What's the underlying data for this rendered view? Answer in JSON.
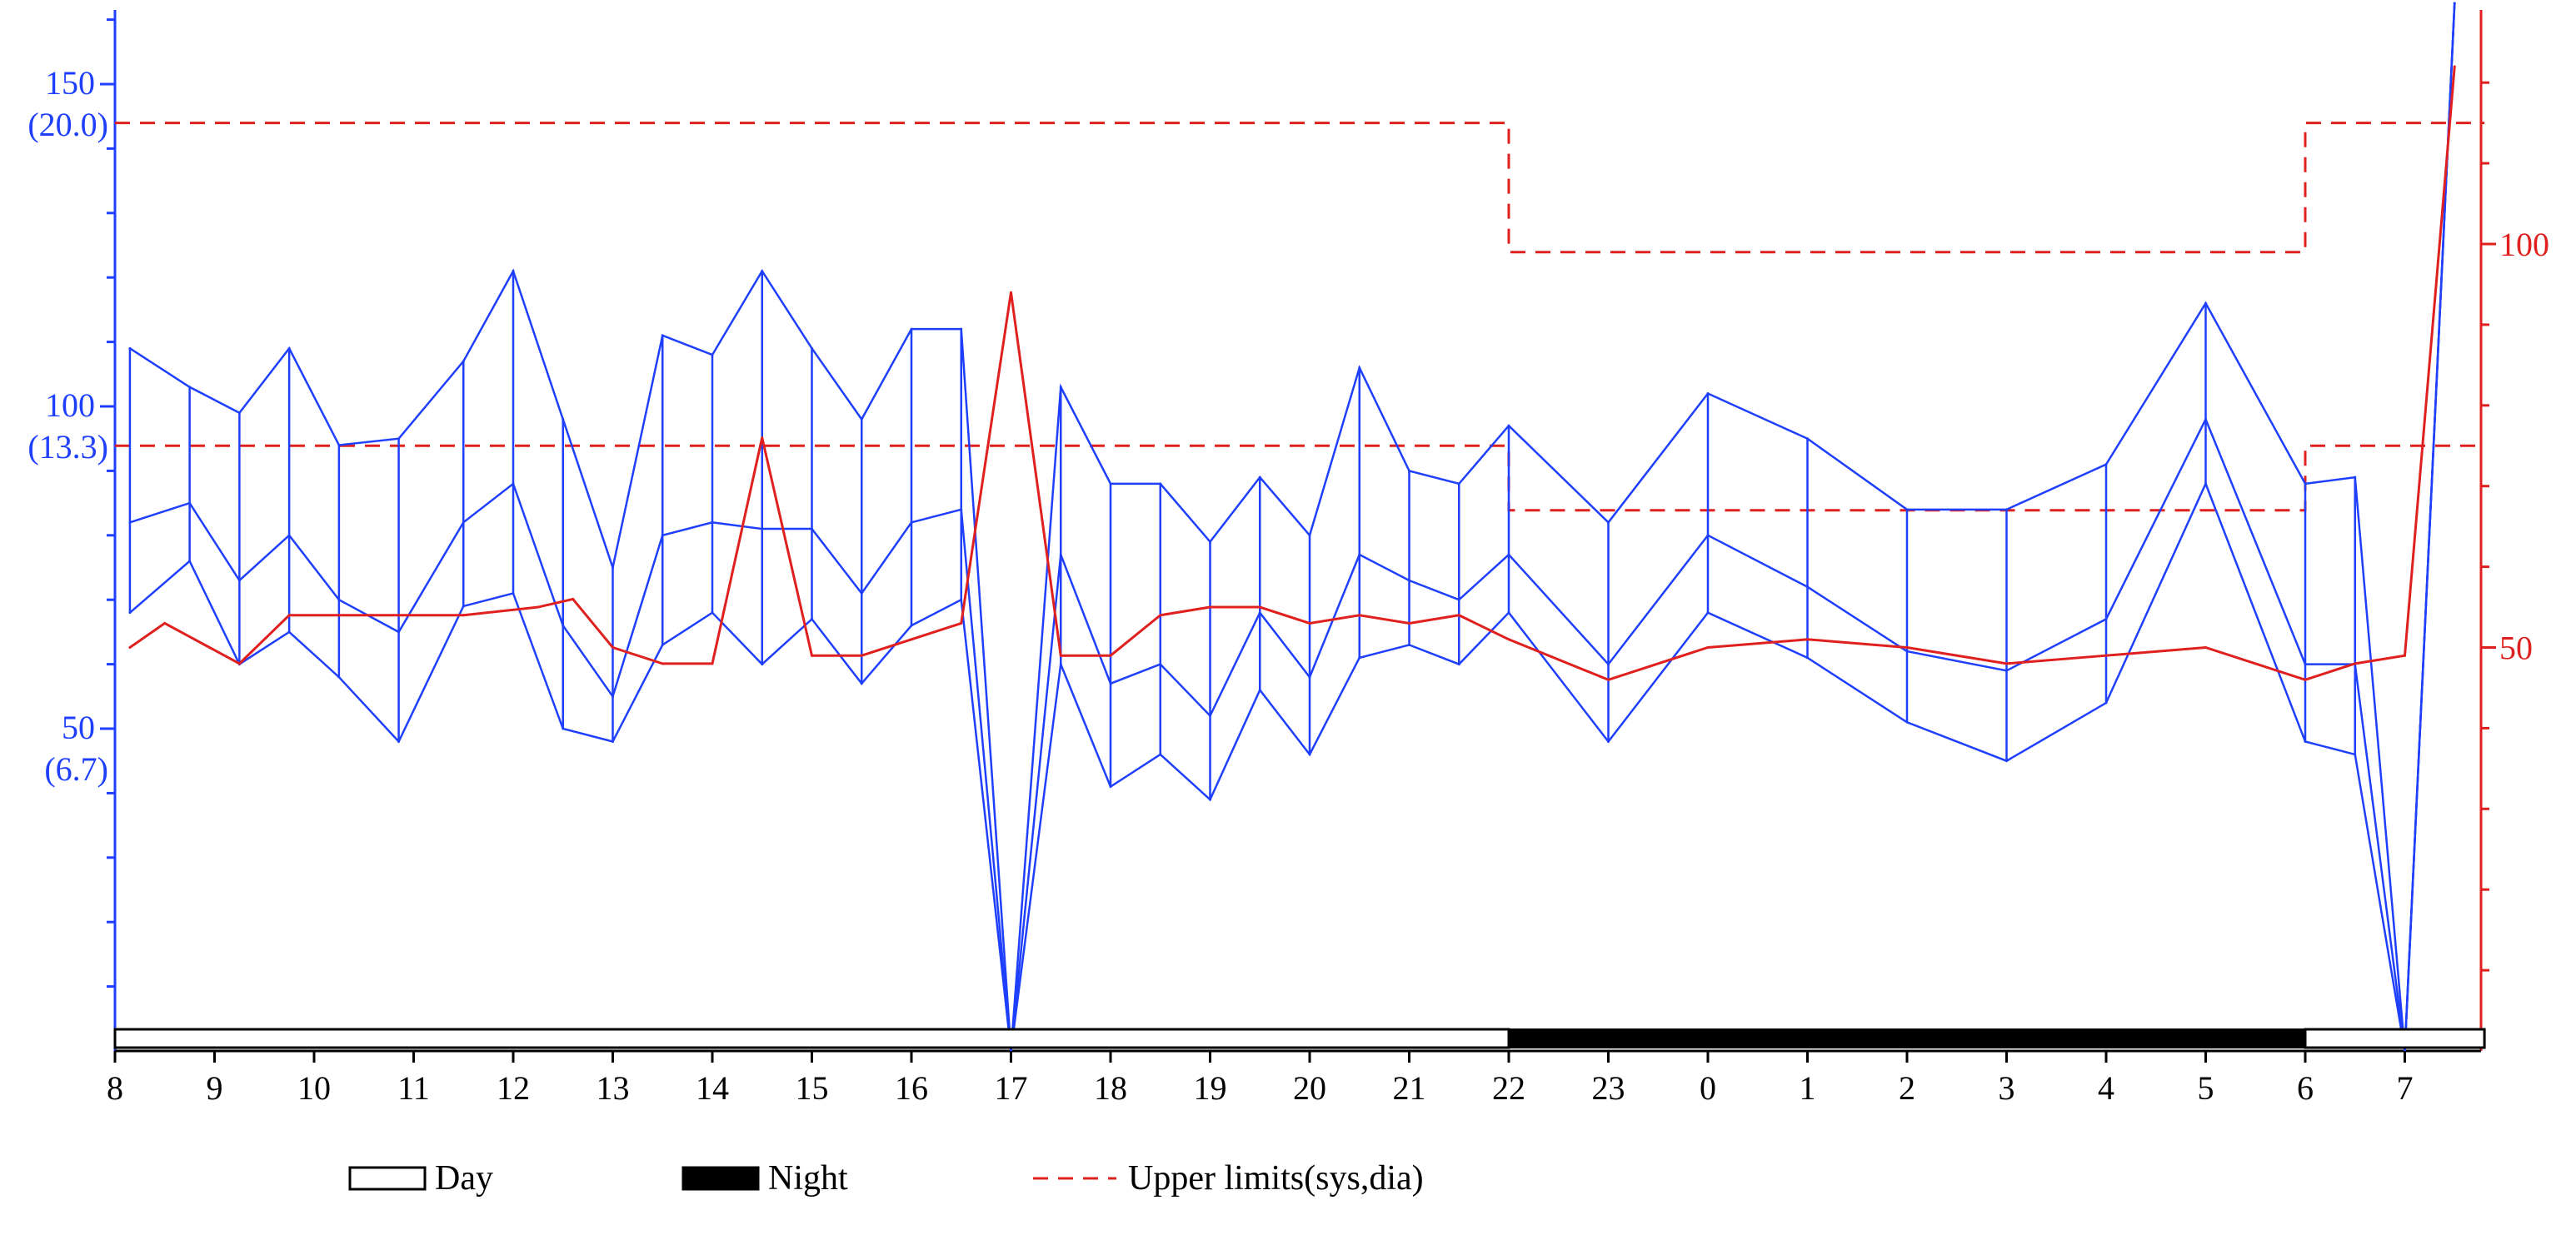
{
  "chart_data": {
    "type": "line",
    "x_tick_labels": [
      "8",
      "9",
      "10",
      "11",
      "12",
      "13",
      "14",
      "15",
      "16",
      "17",
      "18",
      "19",
      "20",
      "21",
      "22",
      "23",
      "0",
      "1",
      "2",
      "3",
      "4",
      "5",
      "6",
      "7"
    ],
    "left_axis": {
      "range": [
        0,
        165
      ],
      "ticks": [
        {
          "value": 150,
          "label": "150",
          "sublabel": "(20.0)"
        },
        {
          "value": 100,
          "label": "100",
          "sublabel": "(13.3)"
        },
        {
          "value": 50,
          "label": "50",
          "sublabel": "(6.7)"
        }
      ],
      "minor_ticks": [
        10,
        20,
        30,
        40,
        60,
        70,
        80,
        90,
        110,
        120,
        130,
        140,
        160
      ],
      "color": "#1f3fff"
    },
    "right_axis": {
      "range": [
        0,
        125
      ],
      "ticks": [
        {
          "value": 100,
          "label": "100"
        },
        {
          "value": 50,
          "label": "50"
        }
      ],
      "minor_ticks": [
        10,
        20,
        30,
        40,
        60,
        70,
        80,
        90,
        110,
        120
      ],
      "color": "#e0201f"
    },
    "series": [
      {
        "role": "systolic",
        "axis": "left",
        "color": "#1f3fff",
        "points": [
          [
            0.15,
            109
          ],
          [
            0.75,
            103
          ],
          [
            1.25,
            99
          ],
          [
            1.75,
            109
          ],
          [
            2.25,
            94
          ],
          [
            2.85,
            95
          ],
          [
            3.5,
            107
          ],
          [
            4.0,
            121
          ],
          [
            4.5,
            98
          ],
          [
            5.0,
            75
          ],
          [
            5.5,
            111
          ],
          [
            6.0,
            108
          ],
          [
            6.5,
            121
          ],
          [
            7.0,
            109
          ],
          [
            7.5,
            98
          ],
          [
            8.0,
            112
          ],
          [
            8.5,
            112
          ],
          [
            9.0,
            0
          ],
          [
            9.5,
            103
          ],
          [
            10.0,
            88
          ],
          [
            10.5,
            88
          ],
          [
            11.0,
            79
          ],
          [
            11.5,
            89
          ],
          [
            12.0,
            80
          ],
          [
            12.5,
            106
          ],
          [
            13.0,
            90
          ],
          [
            13.5,
            88
          ],
          [
            14.0,
            97
          ],
          [
            15.0,
            82
          ],
          [
            16.0,
            102
          ],
          [
            17.0,
            95
          ],
          [
            18.0,
            84
          ],
          [
            19.0,
            84
          ],
          [
            20.0,
            91
          ],
          [
            21.0,
            116
          ],
          [
            22.0,
            88
          ],
          [
            22.5,
            89
          ],
          [
            23.0,
            0
          ],
          [
            23.5,
            165
          ]
        ]
      },
      {
        "role": "mean",
        "axis": "left",
        "color": "#1f3fff",
        "points": [
          [
            0.15,
            82
          ],
          [
            0.75,
            85
          ],
          [
            1.25,
            73
          ],
          [
            1.75,
            80
          ],
          [
            2.25,
            70
          ],
          [
            2.85,
            65
          ],
          [
            3.5,
            82
          ],
          [
            4.0,
            88
          ],
          [
            4.5,
            66
          ],
          [
            5.0,
            55
          ],
          [
            5.5,
            80
          ],
          [
            6.0,
            82
          ],
          [
            6.5,
            81
          ],
          [
            7.0,
            81
          ],
          [
            7.5,
            71
          ],
          [
            8.0,
            82
          ],
          [
            8.5,
            84
          ],
          [
            9.0,
            0
          ],
          [
            9.5,
            77
          ],
          [
            10.0,
            57
          ],
          [
            10.5,
            60
          ],
          [
            11.0,
            52
          ],
          [
            11.5,
            68
          ],
          [
            12.0,
            58
          ],
          [
            12.5,
            77
          ],
          [
            13.0,
            73
          ],
          [
            13.5,
            70
          ],
          [
            14.0,
            77
          ],
          [
            15.0,
            60
          ],
          [
            16.0,
            80
          ],
          [
            17.0,
            72
          ],
          [
            18.0,
            62
          ],
          [
            19.0,
            59
          ],
          [
            20.0,
            67
          ],
          [
            21.0,
            98
          ],
          [
            22.0,
            60
          ],
          [
            22.5,
            60
          ],
          [
            23.0,
            0
          ],
          [
            23.5,
            165
          ]
        ]
      },
      {
        "role": "diastolic",
        "axis": "left",
        "color": "#1f3fff",
        "points": [
          [
            0.15,
            68
          ],
          [
            0.75,
            76
          ],
          [
            1.25,
            60
          ],
          [
            1.75,
            65
          ],
          [
            2.25,
            58
          ],
          [
            2.85,
            48
          ],
          [
            3.5,
            69
          ],
          [
            4.0,
            71
          ],
          [
            4.5,
            50
          ],
          [
            5.0,
            48
          ],
          [
            5.5,
            63
          ],
          [
            6.0,
            68
          ],
          [
            6.5,
            60
          ],
          [
            7.0,
            67
          ],
          [
            7.5,
            57
          ],
          [
            8.0,
            66
          ],
          [
            8.5,
            70
          ],
          [
            9.0,
            0
          ],
          [
            9.5,
            60
          ],
          [
            10.0,
            41
          ],
          [
            10.5,
            46
          ],
          [
            11.0,
            39
          ],
          [
            11.5,
            56
          ],
          [
            12.0,
            46
          ],
          [
            12.5,
            61
          ],
          [
            13.0,
            63
          ],
          [
            13.5,
            60
          ],
          [
            14.0,
            68
          ],
          [
            15.0,
            48
          ],
          [
            16.0,
            68
          ],
          [
            17.0,
            61
          ],
          [
            18.0,
            51
          ],
          [
            19.0,
            45
          ],
          [
            20.0,
            54
          ],
          [
            21.0,
            88
          ],
          [
            22.0,
            48
          ],
          [
            22.5,
            46
          ],
          [
            23.0,
            0
          ],
          [
            23.5,
            165
          ]
        ]
      },
      {
        "role": "pulse",
        "axis": "right",
        "color": "#e0201f",
        "points": [
          [
            0.15,
            50
          ],
          [
            0.5,
            53
          ],
          [
            1.25,
            48
          ],
          [
            1.75,
            54
          ],
          [
            2.5,
            54
          ],
          [
            3.5,
            54
          ],
          [
            4.25,
            55
          ],
          [
            4.6,
            56
          ],
          [
            5.0,
            50
          ],
          [
            5.5,
            48
          ],
          [
            6.0,
            48
          ],
          [
            6.5,
            76
          ],
          [
            7.0,
            49
          ],
          [
            7.5,
            49
          ],
          [
            8.0,
            51
          ],
          [
            8.5,
            53
          ],
          [
            9.0,
            94
          ],
          [
            9.5,
            49
          ],
          [
            10.0,
            49
          ],
          [
            10.5,
            54
          ],
          [
            11.0,
            55
          ],
          [
            11.5,
            55
          ],
          [
            12.0,
            53
          ],
          [
            12.5,
            54
          ],
          [
            13.0,
            53
          ],
          [
            13.5,
            54
          ],
          [
            14.0,
            51
          ],
          [
            15.0,
            46
          ],
          [
            16.0,
            50
          ],
          [
            17.0,
            51
          ],
          [
            18.0,
            50
          ],
          [
            19.0,
            48
          ],
          [
            20.0,
            49
          ],
          [
            21.0,
            50
          ],
          [
            22.0,
            46
          ],
          [
            22.5,
            48
          ],
          [
            23.0,
            49
          ],
          [
            23.5,
            122
          ]
        ]
      }
    ],
    "upper_limits": {
      "axis": "right",
      "color": "#e0201f",
      "style": "dashed",
      "systolic": [
        [
          0,
          115
        ],
        [
          14,
          115
        ],
        [
          14,
          99
        ],
        [
          22,
          99
        ],
        [
          22,
          115
        ],
        [
          23.8,
          115
        ]
      ],
      "diastolic": [
        [
          0,
          75
        ],
        [
          14,
          75
        ],
        [
          14,
          67
        ],
        [
          22,
          67
        ],
        [
          22,
          75
        ],
        [
          23.8,
          75
        ]
      ]
    },
    "day_night_bar": [
      {
        "from": 0,
        "to": 14,
        "state": "day"
      },
      {
        "from": 14,
        "to": 22,
        "state": "night"
      },
      {
        "from": 22,
        "to": 23.8,
        "state": "day"
      }
    ],
    "legend": {
      "placement": "bottom",
      "items": [
        {
          "swatch": "open-box",
          "label": "Day"
        },
        {
          "swatch": "filled-box",
          "label": "Night"
        },
        {
          "swatch": "red-dashed-line",
          "label": "Upper limits(sys,dia)"
        }
      ]
    }
  }
}
